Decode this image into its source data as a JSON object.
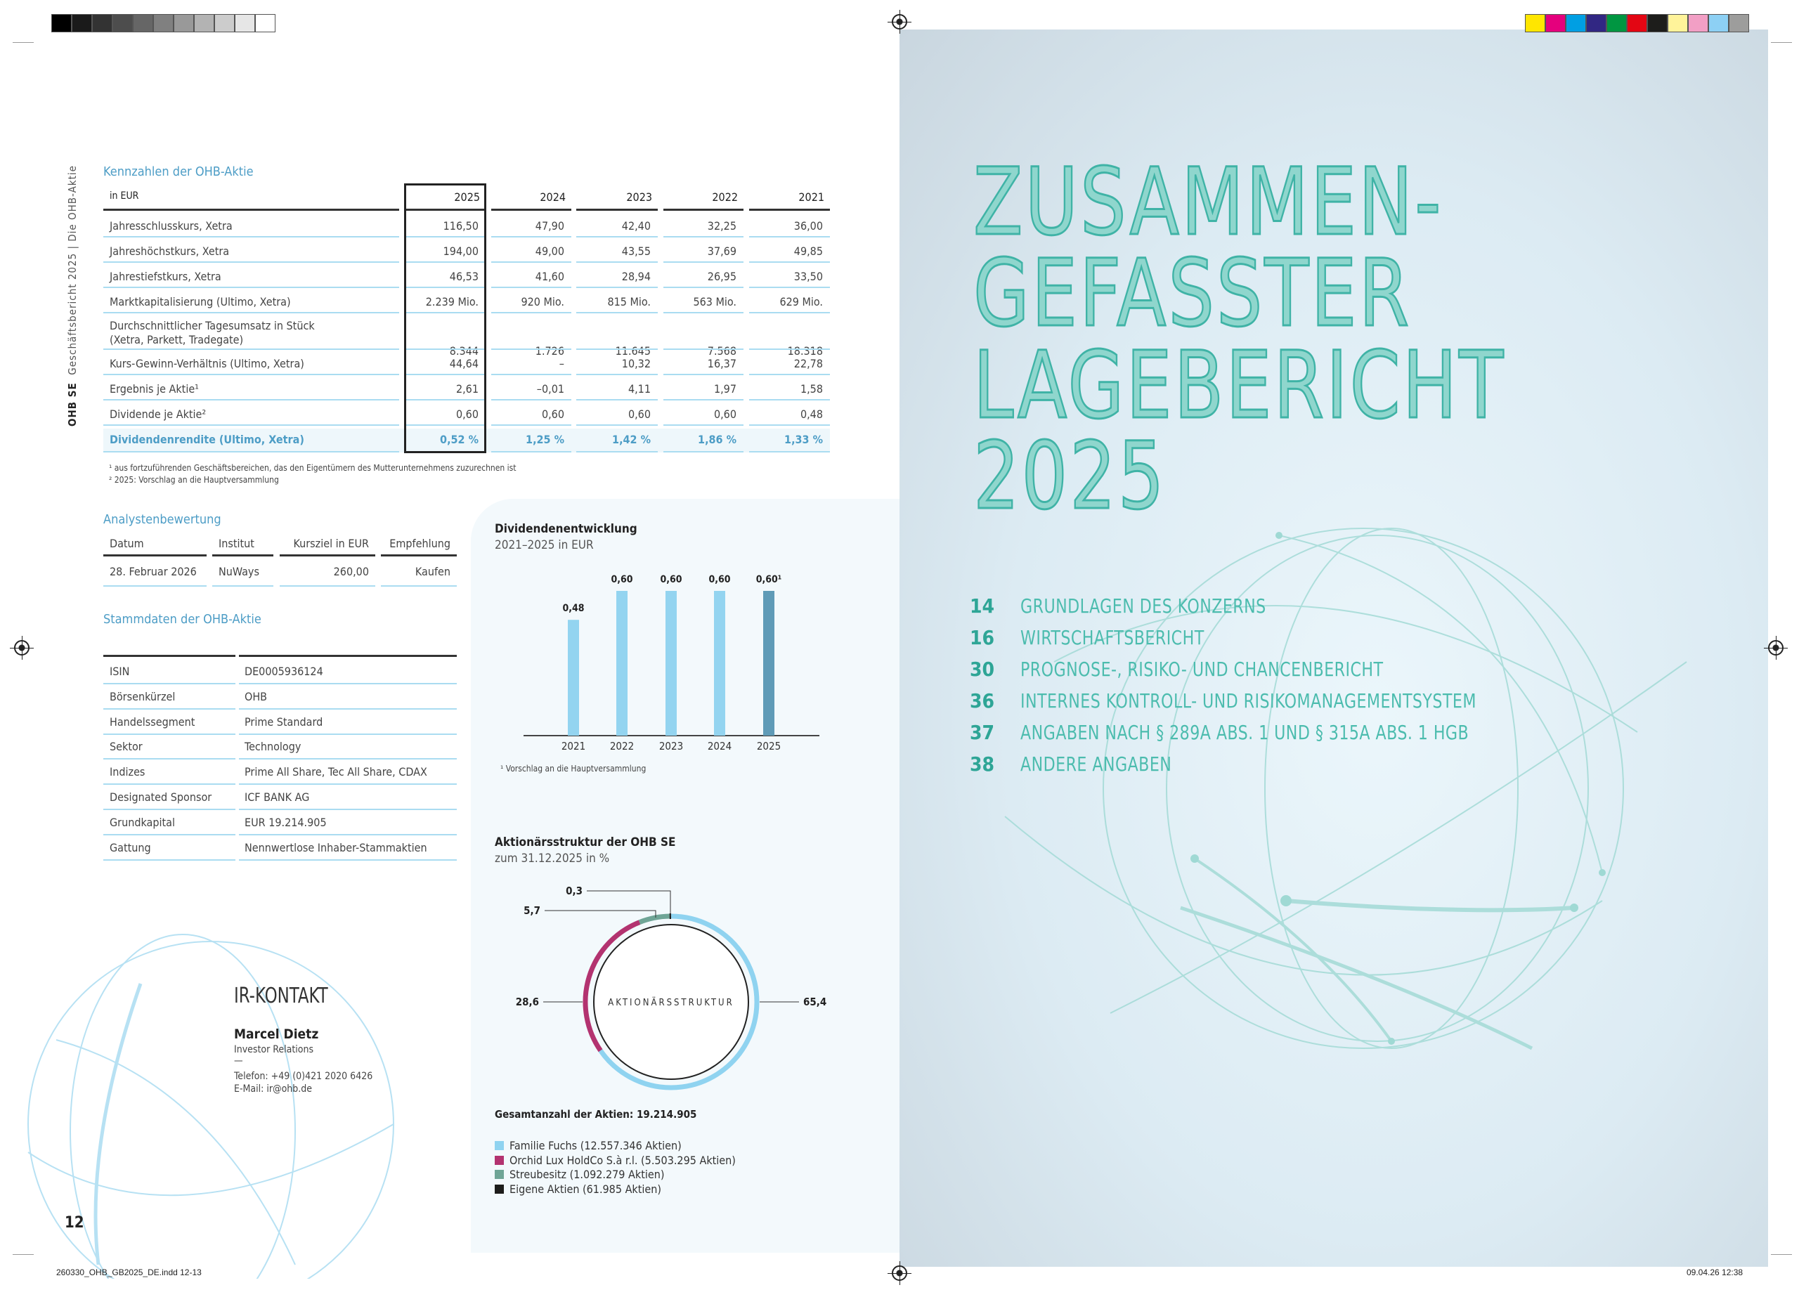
{
  "print_marks": {
    "gray_swatches": [
      "#000000",
      "#1a1a1a",
      "#333333",
      "#4d4d4d",
      "#666666",
      "#808080",
      "#999999",
      "#b3b3b3",
      "#cccccc",
      "#e6e6e6",
      "#ffffff"
    ],
    "color_swatches": [
      "#ffe600",
      "#e5007d",
      "#009fe3",
      "#312783",
      "#009641",
      "#e30613",
      "#1d1d1b",
      "#fff39a",
      "#f29fc5",
      "#8dd0f4",
      "#9d9d9c"
    ],
    "slug_left": "260330_OHB_GB2025_DE.indd   12-13",
    "slug_right": "09.04.26   12:38"
  },
  "running_head": {
    "company": "OHB SE",
    "report": "Geschäftsbericht 2025  |  Die OHB-Aktie"
  },
  "page_number": "12",
  "kennzahlen": {
    "title": "Kennzahlen der OHB-Aktie",
    "unit": "in EUR",
    "years": [
      "2025",
      "2024",
      "2023",
      "2022",
      "2021"
    ],
    "rows": [
      {
        "label": "Jahresschlusskurs, Xetra",
        "values": [
          "116,50",
          "47,90",
          "42,40",
          "32,25",
          "36,00"
        ]
      },
      {
        "label": "Jahreshöchstkurs, Xetra",
        "values": [
          "194,00",
          "49,00",
          "43,55",
          "37,69",
          "49,85"
        ]
      },
      {
        "label": "Jahrestiefstkurs, Xetra",
        "values": [
          "46,53",
          "41,60",
          "28,94",
          "26,95",
          "33,50"
        ]
      },
      {
        "label": "Marktkapitalisierung (Ultimo, Xetra)",
        "values": [
          "2.239 Mio.",
          "920 Mio.",
          "815 Mio.",
          "563 Mio.",
          "629 Mio."
        ]
      },
      {
        "label": "Durchschnittlicher Tagesumsatz in Stück",
        "label2": "(Xetra, Parkett, Tradegate)",
        "values": [
          "8.344",
          "1.726",
          "11.645",
          "7.568",
          "18.318"
        ]
      },
      {
        "label": "Kurs-Gewinn-Verhältnis (Ultimo, Xetra)",
        "values": [
          "44,64",
          "–",
          "10,32",
          "16,37",
          "22,78"
        ]
      },
      {
        "label": "Ergebnis je Aktie¹",
        "values": [
          "2,61",
          "–0,01",
          "4,11",
          "1,97",
          "1,58"
        ]
      },
      {
        "label": "Dividende je Aktie²",
        "values": [
          "0,60",
          "0,60",
          "0,60",
          "0,60",
          "0,48"
        ]
      },
      {
        "label": "Dividendenrendite (Ultimo, Xetra)",
        "values": [
          "0,52 %",
          "1,25 %",
          "1,42 %",
          "1,86 %",
          "1,33 %"
        ],
        "highlight": true
      }
    ],
    "footnotes": [
      "¹  aus fortzuführenden Geschäftsbereichen, das den Eigentümern des Mutterunternehmens zuzurechnen ist",
      "²  2025: Vorschlag an die Hauptversammlung"
    ]
  },
  "analysten": {
    "title": "Analystenbewertung",
    "headers": [
      "Datum",
      "Institut",
      "Kursziel in EUR",
      "Empfehlung"
    ],
    "row": [
      "28. Februar 2026",
      "NuWays",
      "260,00",
      "Kaufen"
    ]
  },
  "stammdaten": {
    "title": "Stammdaten der OHB-Aktie",
    "rows": [
      [
        "ISIN",
        "DE0005936124"
      ],
      [
        "Börsenkürzel",
        "OHB"
      ],
      [
        "Handelssegment",
        "Prime Standard"
      ],
      [
        "Sektor",
        "Technology"
      ],
      [
        "Indizes",
        "Prime All Share, Tec All Share, CDAX"
      ],
      [
        "Designated Sponsor",
        "ICF BANK AG"
      ],
      [
        "Grundkapital",
        "EUR 19.214.905"
      ],
      [
        "Gattung",
        "Nennwertlose Inhaber-Stammaktien"
      ]
    ]
  },
  "ir": {
    "title": "IR-KONTAKT",
    "name": "Marcel Dietz",
    "role": "Investor Relations",
    "dash": "—",
    "phone": "Telefon: +49 (0)421 2020 6426",
    "email": "E-Mail: ir@ohb.de"
  },
  "chart_data": [
    {
      "type": "bar",
      "title": "Dividendenentwicklung",
      "subtitle": "2021–2025 in EUR",
      "categories": [
        "2021",
        "2022",
        "2023",
        "2024",
        "2025"
      ],
      "values": [
        0.48,
        0.6,
        0.6,
        0.6,
        0.6
      ],
      "data_labels": [
        "0,48",
        "0,60",
        "0,60",
        "0,60",
        "0,60¹"
      ],
      "colors": [
        "#93d4f0",
        "#93d4f0",
        "#93d4f0",
        "#93d4f0",
        "#5f9bb7"
      ],
      "ylim": [
        0,
        0.6
      ],
      "footnote": "¹  Vorschlag an die Hauptversammlung"
    },
    {
      "type": "pie",
      "title": "Aktionärsstruktur der OHB SE",
      "subtitle": "zum 31.12.2025 in %",
      "center_label": "AKTIONÄRSSTRUKTUR",
      "slices": [
        {
          "name": "Familie Fuchs (12.557.346 Aktien)",
          "value": 65.4,
          "label": "65,4",
          "color": "#8fd3f0"
        },
        {
          "name": "Orchid Lux HoldCo S.à r.l. (5.503.295 Aktien)",
          "value": 28.6,
          "label": "28,6",
          "color": "#b33370"
        },
        {
          "name": "Streubesitz (1.092.279 Aktien)",
          "value": 5.7,
          "label": "5,7",
          "color": "#6fa596"
        },
        {
          "name": "Eigene Aktien (61.985 Aktien)",
          "value": 0.3,
          "label": "0,3",
          "color": "#1d1d1b"
        }
      ],
      "total": "Gesamtanzahl der Aktien: 19.214.905"
    }
  ],
  "chapter": {
    "title_lines": [
      "ZUSAMMEN-",
      "GEFASSTER",
      "LAGEBERICHT",
      "2025"
    ],
    "toc": [
      {
        "page": "14",
        "label": "GRUNDLAGEN DES KONZERNS"
      },
      {
        "page": "16",
        "label": "WIRTSCHAFTSBERICHT"
      },
      {
        "page": "30",
        "label": "PROGNOSE-, RISIKO- UND CHANCENBERICHT"
      },
      {
        "page": "36",
        "label": "INTERNES KONTROLL- UND RISIKOMANAGEMENTSYSTEM"
      },
      {
        "page": "37",
        "label": "ANGABEN NACH § 289A ABS. 1 UND § 315A ABS. 1 HGB"
      },
      {
        "page": "38",
        "label": "ANDERE ANGABEN"
      }
    ]
  }
}
